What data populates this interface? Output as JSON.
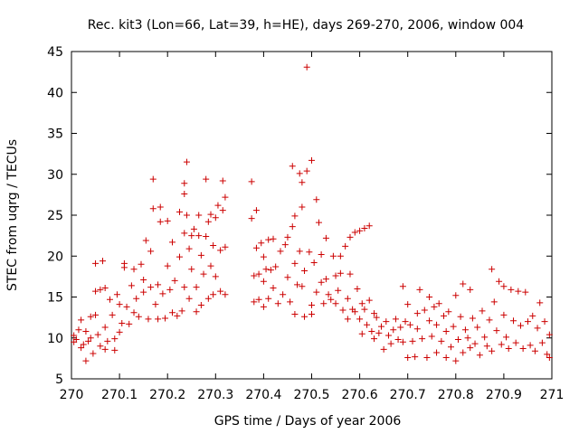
{
  "chart_data": {
    "type": "scatter",
    "title": "Rec. kit3 (Lon=66, Lat=39, h=HE), days 269-270, 2006, window 004",
    "xlabel": "GPS time / Days of year 2006",
    "ylabel": "STEC from uqrg / TECUs",
    "xlim": [
      270,
      271
    ],
    "ylim": [
      5,
      45
    ],
    "xticks": [
      270,
      270.1,
      270.2,
      270.3,
      270.4,
      270.5,
      270.6,
      270.7,
      270.8,
      270.9,
      271
    ],
    "xtick_labels": [
      "270",
      "270.1",
      "270.2",
      "270.3",
      "270.4",
      "270.5",
      "270.6",
      "270.7",
      "270.8",
      "270.9",
      "271"
    ],
    "yticks": [
      5,
      10,
      15,
      20,
      25,
      30,
      35,
      40,
      45
    ],
    "ytick_labels": [
      "5",
      "10",
      "15",
      "20",
      "25",
      "30",
      "35",
      "40",
      "45"
    ],
    "marker": "+",
    "color": "#cc0000",
    "grid": false,
    "series": [
      {
        "name": "STEC",
        "points": [
          [
            270.005,
            9.5
          ],
          [
            270.005,
            10.3
          ],
          [
            270.01,
            9.8
          ],
          [
            270.015,
            11.0
          ],
          [
            270.02,
            8.8
          ],
          [
            270.02,
            12.2
          ],
          [
            270.025,
            9.2
          ],
          [
            270.03,
            10.8
          ],
          [
            270.03,
            7.2
          ],
          [
            270.035,
            9.6
          ],
          [
            270.04,
            12.6
          ],
          [
            270.04,
            10.0
          ],
          [
            270.045,
            8.1
          ],
          [
            270.05,
            19.1
          ],
          [
            270.05,
            15.7
          ],
          [
            270.05,
            12.8
          ],
          [
            270.055,
            10.4
          ],
          [
            270.06,
            9.0
          ],
          [
            270.06,
            15.9
          ],
          [
            270.065,
            19.4
          ],
          [
            270.07,
            16.1
          ],
          [
            270.07,
            11.3
          ],
          [
            270.07,
            8.6
          ],
          [
            270.075,
            9.6
          ],
          [
            270.08,
            14.7
          ],
          [
            270.085,
            12.8
          ],
          [
            270.09,
            9.9
          ],
          [
            270.09,
            8.5
          ],
          [
            270.095,
            15.3
          ],
          [
            270.1,
            10.7
          ],
          [
            270.1,
            14.1
          ],
          [
            270.105,
            11.8
          ],
          [
            270.11,
            18.6
          ],
          [
            270.11,
            19.1
          ],
          [
            270.115,
            13.8
          ],
          [
            270.12,
            11.7
          ],
          [
            270.125,
            16.4
          ],
          [
            270.13,
            13.1
          ],
          [
            270.13,
            18.4
          ],
          [
            270.135,
            14.8
          ],
          [
            270.14,
            12.6
          ],
          [
            270.145,
            19.0
          ],
          [
            270.15,
            15.6
          ],
          [
            270.15,
            17.1
          ],
          [
            270.155,
            21.9
          ],
          [
            270.16,
            12.3
          ],
          [
            270.165,
            16.2
          ],
          [
            270.165,
            20.6
          ],
          [
            270.17,
            25.8
          ],
          [
            270.17,
            29.4
          ],
          [
            270.175,
            14.1
          ],
          [
            270.18,
            16.5
          ],
          [
            270.18,
            12.3
          ],
          [
            270.185,
            24.2
          ],
          [
            270.185,
            26.0
          ],
          [
            270.19,
            15.4
          ],
          [
            270.195,
            12.4
          ],
          [
            270.2,
            18.8
          ],
          [
            270.2,
            24.3
          ],
          [
            270.205,
            15.9
          ],
          [
            270.21,
            13.1
          ],
          [
            270.21,
            21.7
          ],
          [
            270.215,
            17.0
          ],
          [
            270.22,
            12.7
          ],
          [
            270.225,
            19.9
          ],
          [
            270.225,
            25.4
          ],
          [
            270.23,
            13.3
          ],
          [
            270.235,
            16.2
          ],
          [
            270.235,
            22.8
          ],
          [
            270.235,
            28.9
          ],
          [
            270.235,
            27.6
          ],
          [
            270.24,
            31.5
          ],
          [
            270.24,
            25.0
          ],
          [
            270.245,
            20.9
          ],
          [
            270.245,
            14.8
          ],
          [
            270.25,
            22.5
          ],
          [
            270.25,
            18.4
          ],
          [
            270.255,
            23.3
          ],
          [
            270.26,
            13.2
          ],
          [
            270.26,
            16.2
          ],
          [
            270.265,
            22.5
          ],
          [
            270.265,
            25.0
          ],
          [
            270.27,
            20.1
          ],
          [
            270.27,
            14.0
          ],
          [
            270.275,
            17.8
          ],
          [
            270.28,
            22.4
          ],
          [
            270.28,
            29.4
          ],
          [
            270.285,
            24.2
          ],
          [
            270.285,
            14.8
          ],
          [
            270.29,
            18.8
          ],
          [
            270.29,
            25.1
          ],
          [
            270.295,
            21.3
          ],
          [
            270.295,
            15.3
          ],
          [
            270.3,
            17.5
          ],
          [
            270.3,
            24.7
          ],
          [
            270.305,
            26.2
          ],
          [
            270.31,
            20.7
          ],
          [
            270.31,
            15.7
          ],
          [
            270.315,
            29.2
          ],
          [
            270.315,
            25.6
          ],
          [
            270.32,
            21.1
          ],
          [
            270.32,
            15.3
          ],
          [
            270.32,
            27.2
          ],
          [
            270.375,
            29.1
          ],
          [
            270.375,
            24.6
          ],
          [
            270.38,
            17.6
          ],
          [
            270.38,
            14.4
          ],
          [
            270.385,
            21.0
          ],
          [
            270.385,
            25.6
          ],
          [
            270.39,
            17.8
          ],
          [
            270.39,
            14.7
          ],
          [
            270.395,
            21.6
          ],
          [
            270.4,
            16.9
          ],
          [
            270.4,
            19.9
          ],
          [
            270.4,
            13.8
          ],
          [
            270.405,
            18.4
          ],
          [
            270.41,
            14.8
          ],
          [
            270.41,
            22.0
          ],
          [
            270.415,
            18.3
          ],
          [
            270.42,
            22.1
          ],
          [
            270.42,
            16.1
          ],
          [
            270.425,
            18.7
          ],
          [
            270.43,
            14.2
          ],
          [
            270.435,
            20.6
          ],
          [
            270.44,
            15.3
          ],
          [
            270.445,
            21.4
          ],
          [
            270.45,
            22.3
          ],
          [
            270.45,
            17.4
          ],
          [
            270.455,
            14.4
          ],
          [
            270.46,
            23.6
          ],
          [
            270.46,
            31.0
          ],
          [
            270.465,
            24.9
          ],
          [
            270.465,
            19.1
          ],
          [
            270.465,
            12.9
          ],
          [
            270.47,
            16.5
          ],
          [
            270.475,
            30.1
          ],
          [
            270.475,
            20.6
          ],
          [
            270.48,
            29.0
          ],
          [
            270.48,
            26.0
          ],
          [
            270.48,
            16.3
          ],
          [
            270.485,
            18.2
          ],
          [
            270.485,
            12.6
          ],
          [
            270.49,
            43.1
          ],
          [
            270.49,
            30.4
          ],
          [
            270.495,
            20.5
          ],
          [
            270.5,
            31.7
          ],
          [
            270.5,
            14.0
          ],
          [
            270.5,
            12.9
          ],
          [
            270.505,
            19.2
          ],
          [
            270.51,
            26.9
          ],
          [
            270.51,
            15.6
          ],
          [
            270.515,
            24.1
          ],
          [
            270.52,
            16.8
          ],
          [
            270.52,
            20.2
          ],
          [
            270.525,
            14.2
          ],
          [
            270.53,
            22.2
          ],
          [
            270.53,
            17.2
          ],
          [
            270.535,
            15.3
          ],
          [
            270.54,
            14.7
          ],
          [
            270.545,
            20.0
          ],
          [
            270.55,
            17.6
          ],
          [
            270.55,
            14.2
          ],
          [
            270.555,
            15.8
          ],
          [
            270.56,
            20.0
          ],
          [
            270.56,
            17.9
          ],
          [
            270.565,
            13.4
          ],
          [
            270.57,
            21.2
          ],
          [
            270.575,
            14.8
          ],
          [
            270.575,
            12.3
          ],
          [
            270.58,
            22.3
          ],
          [
            270.58,
            17.8
          ],
          [
            270.585,
            13.5
          ],
          [
            270.59,
            22.9
          ],
          [
            270.59,
            13.2
          ],
          [
            270.595,
            16.0
          ],
          [
            270.6,
            23.1
          ],
          [
            270.6,
            12.3
          ],
          [
            270.605,
            14.2
          ],
          [
            270.605,
            10.5
          ],
          [
            270.61,
            23.4
          ],
          [
            270.61,
            13.5
          ],
          [
            270.615,
            11.6
          ],
          [
            270.62,
            23.7
          ],
          [
            270.62,
            14.6
          ],
          [
            270.625,
            10.8
          ],
          [
            270.63,
            13.0
          ],
          [
            270.63,
            9.9
          ],
          [
            270.635,
            12.5
          ],
          [
            270.64,
            10.6
          ],
          [
            270.645,
            11.4
          ],
          [
            270.65,
            8.6
          ],
          [
            270.655,
            12.0
          ],
          [
            270.66,
            10.3
          ],
          [
            270.665,
            9.3
          ],
          [
            270.67,
            11.0
          ],
          [
            270.675,
            12.3
          ],
          [
            270.68,
            9.8
          ],
          [
            270.685,
            11.3
          ],
          [
            270.69,
            16.3
          ],
          [
            270.69,
            9.5
          ],
          [
            270.695,
            12.0
          ],
          [
            270.7,
            7.6
          ],
          [
            270.7,
            14.1
          ],
          [
            270.705,
            11.6
          ],
          [
            270.71,
            9.6
          ],
          [
            270.715,
            7.7
          ],
          [
            270.72,
            13.0
          ],
          [
            270.72,
            11.1
          ],
          [
            270.725,
            15.9
          ],
          [
            270.73,
            9.9
          ],
          [
            270.735,
            13.4
          ],
          [
            270.74,
            7.6
          ],
          [
            270.745,
            12.1
          ],
          [
            270.745,
            15.0
          ],
          [
            270.75,
            10.2
          ],
          [
            270.755,
            13.8
          ],
          [
            270.76,
            8.2
          ],
          [
            270.76,
            11.6
          ],
          [
            270.765,
            14.2
          ],
          [
            270.77,
            9.6
          ],
          [
            270.775,
            12.7
          ],
          [
            270.78,
            7.6
          ],
          [
            270.78,
            10.8
          ],
          [
            270.785,
            13.2
          ],
          [
            270.79,
            8.9
          ],
          [
            270.795,
            11.4
          ],
          [
            270.8,
            7.2
          ],
          [
            270.8,
            15.2
          ],
          [
            270.805,
            9.8
          ],
          [
            270.81,
            12.6
          ],
          [
            270.815,
            16.6
          ],
          [
            270.815,
            8.2
          ],
          [
            270.82,
            11.0
          ],
          [
            270.825,
            10.0
          ],
          [
            270.83,
            15.9
          ],
          [
            270.83,
            8.8
          ],
          [
            270.835,
            12.4
          ],
          [
            270.84,
            9.3
          ],
          [
            270.845,
            11.3
          ],
          [
            270.85,
            7.9
          ],
          [
            270.855,
            13.3
          ],
          [
            270.86,
            10.1
          ],
          [
            270.865,
            9.0
          ],
          [
            270.87,
            12.2
          ],
          [
            270.875,
            18.4
          ],
          [
            270.875,
            8.4
          ],
          [
            270.88,
            14.4
          ],
          [
            270.885,
            10.9
          ],
          [
            270.89,
            16.9
          ],
          [
            270.895,
            9.2
          ],
          [
            270.9,
            12.8
          ],
          [
            270.9,
            16.3
          ],
          [
            270.905,
            10.1
          ],
          [
            270.91,
            8.7
          ],
          [
            270.915,
            15.9
          ],
          [
            270.92,
            12.1
          ],
          [
            270.925,
            9.4
          ],
          [
            270.93,
            15.7
          ],
          [
            270.935,
            11.5
          ],
          [
            270.94,
            8.7
          ],
          [
            270.945,
            15.6
          ],
          [
            270.95,
            12.0
          ],
          [
            270.955,
            9.1
          ],
          [
            270.96,
            12.7
          ],
          [
            270.965,
            8.4
          ],
          [
            270.97,
            11.2
          ],
          [
            270.975,
            14.3
          ],
          [
            270.98,
            9.4
          ],
          [
            270.985,
            12.0
          ],
          [
            270.99,
            8.0
          ],
          [
            270.995,
            10.4
          ],
          [
            270.995,
            7.6
          ]
        ]
      }
    ]
  }
}
